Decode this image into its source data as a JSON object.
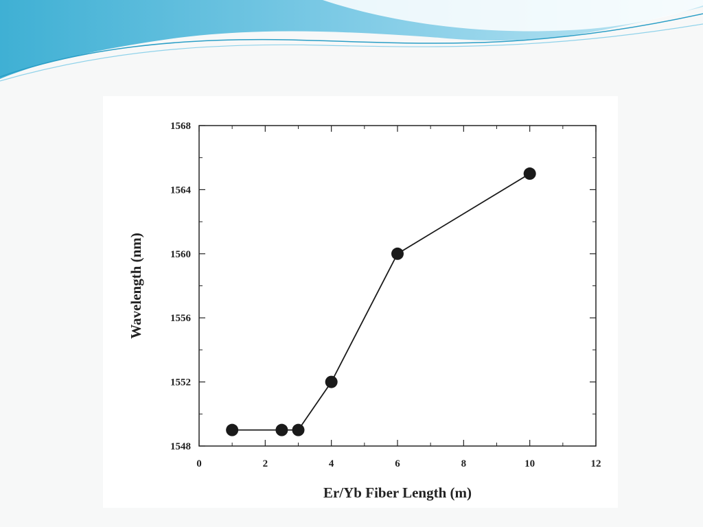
{
  "colors": {
    "banner_dark": "#46b5d6",
    "banner_light": "#a9dcee",
    "background": "#f7f8f8",
    "marker": "#1a1a1a",
    "line": "#1a1a1a"
  },
  "chart_data": {
    "type": "line",
    "title": "",
    "xlabel": "Er/Yb Fiber Length (m)",
    "ylabel": "Wavelength (nm)",
    "xlim": [
      0,
      12
    ],
    "ylim": [
      1548,
      1568
    ],
    "xticks": [
      0,
      2,
      4,
      6,
      8,
      10,
      12
    ],
    "yticks": [
      1548,
      1552,
      1556,
      1560,
      1564,
      1568
    ],
    "grid": false,
    "legend": "none",
    "series": [
      {
        "x": [
          1,
          2.5,
          3,
          4,
          6,
          10
        ],
        "y": [
          1549,
          1549,
          1549,
          1552,
          1560,
          1565
        ],
        "marker": "circle"
      }
    ]
  }
}
